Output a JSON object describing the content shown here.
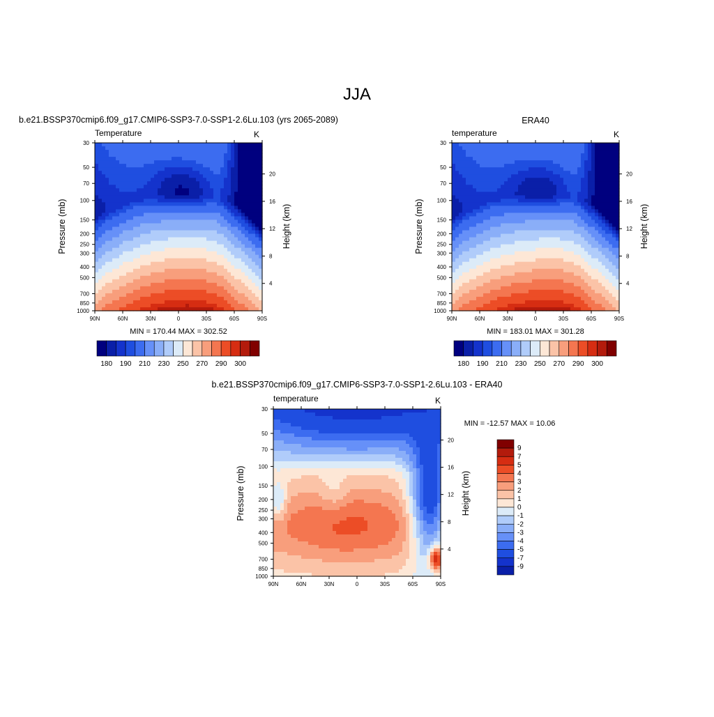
{
  "page_title": "JJA",
  "colors": {
    "abs_scale": [
      "#00007f",
      "#0a1fa8",
      "#1433cc",
      "#1f4ee0",
      "#3c6cf0",
      "#6690f8",
      "#8aaef8",
      "#b0ccfa",
      "#dcebf8",
      "#fde7d6",
      "#fbc3a7",
      "#f89e7c",
      "#f47650",
      "#ec4d26",
      "#d62d12",
      "#b31b0c",
      "#800000"
    ],
    "diff_scale": [
      "#00007f",
      "#0a1fa8",
      "#1433cc",
      "#1f4ee0",
      "#3c6cf0",
      "#6690f8",
      "#8aaef8",
      "#b0ccfa",
      "#dcebf8",
      "#fde7d6",
      "#fbc3a7",
      "#f89e7c",
      "#f47650",
      "#ec4d26",
      "#d62d12",
      "#b31b0c",
      "#800000"
    ]
  },
  "chart_data": [
    {
      "type": "heatmap",
      "title": "b.e21.BSSP370cmip6.f09_g17.CMIP6-SSP3-7.0-SSP1-2.6Lu.103 (yrs 2065-2089)",
      "left_label": "Temperature",
      "units": "K",
      "ylabel": "Pressure (mb)",
      "ylabel_right": "Height (km)",
      "x_ticks": [
        "90N",
        "60N",
        "30N",
        "0",
        "30S",
        "60S",
        "90S"
      ],
      "y_ticks": [
        "30",
        "50",
        "70",
        "100",
        "150",
        "200",
        "250",
        "300",
        "400",
        "500",
        "700",
        "850",
        "1000"
      ],
      "y_right_ticks": [
        "20",
        "16",
        "12",
        "8",
        "4"
      ],
      "stats": "MIN = 170.44  MAX = 302.52",
      "min": 170.44,
      "max": 302.52,
      "colorbar_labels": [
        "180",
        "190",
        "210",
        "230",
        "250",
        "270",
        "290",
        "300"
      ],
      "levels": [
        175,
        180,
        185,
        190,
        200,
        210,
        220,
        230,
        240,
        250,
        260,
        270,
        280,
        290,
        295,
        300
      ]
    },
    {
      "type": "heatmap",
      "title": "ERA40",
      "left_label": "temperature",
      "units": "K",
      "ylabel": "Pressure (mb)",
      "ylabel_right": "Height (km)",
      "x_ticks": [
        "90N",
        "60N",
        "30N",
        "0",
        "30S",
        "60S",
        "90S"
      ],
      "y_ticks": [
        "30",
        "50",
        "70",
        "100",
        "150",
        "200",
        "250",
        "300",
        "400",
        "500",
        "700",
        "850",
        "1000"
      ],
      "y_right_ticks": [
        "20",
        "16",
        "12",
        "8",
        "4"
      ],
      "stats": "MIN = 183.01  MAX = 301.28",
      "min": 183.01,
      "max": 301.28,
      "colorbar_labels": [
        "180",
        "190",
        "210",
        "230",
        "250",
        "270",
        "290",
        "300"
      ],
      "levels": [
        175,
        180,
        185,
        190,
        200,
        210,
        220,
        230,
        240,
        250,
        260,
        270,
        280,
        290,
        295,
        300
      ]
    },
    {
      "type": "heatmap",
      "title": "b.e21.BSSP370cmip6.f09_g17.CMIP6-SSP3-7.0-SSP1-2.6Lu.103 - ERA40",
      "left_label": "temperature",
      "units": "K",
      "ylabel": "Pressure (mb)",
      "ylabel_right": "Height (km)",
      "x_ticks": [
        "90N",
        "60N",
        "30N",
        "0",
        "30S",
        "60S",
        "90S"
      ],
      "y_ticks": [
        "30",
        "50",
        "70",
        "100",
        "150",
        "200",
        "250",
        "300",
        "400",
        "500",
        "700",
        "850",
        "1000"
      ],
      "y_right_ticks": [
        "20",
        "16",
        "12",
        "8",
        "4"
      ],
      "stats": "MIN = -12.57  MAX =  10.06",
      "min": -12.57,
      "max": 10.06,
      "colorbar_labels": [
        "9",
        "7",
        "5",
        "4",
        "3",
        "2",
        "1",
        "0",
        "-1",
        "-2",
        "-3",
        "-4",
        "-5",
        "-7",
        "-9"
      ],
      "levels": [
        -9,
        -7,
        -5,
        -4,
        -3,
        -2,
        -1,
        0,
        1,
        2,
        3,
        4,
        5,
        7,
        9
      ]
    }
  ]
}
